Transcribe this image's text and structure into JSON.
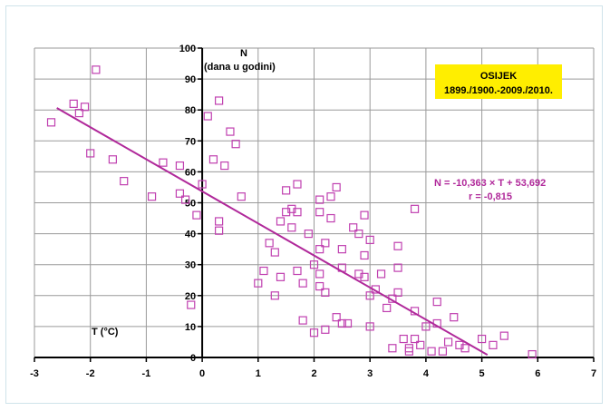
{
  "chart_data": {
    "type": "scatter",
    "title_box": {
      "line1": "OSIJEK",
      "line2": "1899./1900.-2009./2010.",
      "fill": "#ffee00"
    },
    "ylabel_line1": "N",
    "ylabel_line2": "(dana u godini)",
    "xlabel": "T (°C)",
    "xlim": [
      -3,
      7
    ],
    "ylim": [
      0,
      100
    ],
    "x_ticks": [
      -3,
      -2,
      -1,
      0,
      1,
      2,
      3,
      4,
      5,
      6,
      7
    ],
    "y_ticks": [
      0,
      10,
      20,
      30,
      40,
      50,
      60,
      70,
      80,
      90,
      100
    ],
    "grid": true,
    "marker_color": "#c040b0",
    "trend_color": "#b0289a",
    "regression": {
      "slope": -10.363,
      "intercept": 53.692,
      "x_range": [
        -2.6,
        5.1
      ],
      "equation": "N = -10,363 × T + 53,692",
      "r_text": "r = -0,815"
    },
    "points": [
      {
        "x": -2.7,
        "y": 76
      },
      {
        "x": -2.3,
        "y": 82
      },
      {
        "x": -2.1,
        "y": 81
      },
      {
        "x": -2.2,
        "y": 79
      },
      {
        "x": -1.9,
        "y": 93
      },
      {
        "x": -2.0,
        "y": 66
      },
      {
        "x": -1.6,
        "y": 64
      },
      {
        "x": -1.4,
        "y": 57
      },
      {
        "x": -0.9,
        "y": 52
      },
      {
        "x": -0.7,
        "y": 63
      },
      {
        "x": -0.4,
        "y": 62
      },
      {
        "x": -0.4,
        "y": 53
      },
      {
        "x": -0.3,
        "y": 51
      },
      {
        "x": -0.1,
        "y": 46
      },
      {
        "x": -0.2,
        "y": 17
      },
      {
        "x": 0.0,
        "y": 56
      },
      {
        "x": 0.1,
        "y": 78
      },
      {
        "x": 0.2,
        "y": 64
      },
      {
        "x": 0.3,
        "y": 83
      },
      {
        "x": 0.4,
        "y": 62
      },
      {
        "x": 0.5,
        "y": 73
      },
      {
        "x": 0.6,
        "y": 69
      },
      {
        "x": 0.7,
        "y": 52
      },
      {
        "x": 0.3,
        "y": 44
      },
      {
        "x": 0.3,
        "y": 41
      },
      {
        "x": 1.0,
        "y": 24
      },
      {
        "x": 1.1,
        "y": 28
      },
      {
        "x": 1.2,
        "y": 37
      },
      {
        "x": 1.3,
        "y": 34
      },
      {
        "x": 1.3,
        "y": 20
      },
      {
        "x": 1.4,
        "y": 26
      },
      {
        "x": 1.4,
        "y": 44
      },
      {
        "x": 1.5,
        "y": 47
      },
      {
        "x": 1.5,
        "y": 54
      },
      {
        "x": 1.6,
        "y": 48
      },
      {
        "x": 1.6,
        "y": 42
      },
      {
        "x": 1.7,
        "y": 47
      },
      {
        "x": 1.7,
        "y": 56
      },
      {
        "x": 1.7,
        "y": 28
      },
      {
        "x": 1.8,
        "y": 24
      },
      {
        "x": 1.8,
        "y": 12
      },
      {
        "x": 1.9,
        "y": 40
      },
      {
        "x": 2.0,
        "y": 30
      },
      {
        "x": 2.0,
        "y": 8
      },
      {
        "x": 2.1,
        "y": 51
      },
      {
        "x": 2.1,
        "y": 47
      },
      {
        "x": 2.1,
        "y": 35
      },
      {
        "x": 2.1,
        "y": 27
      },
      {
        "x": 2.1,
        "y": 23
      },
      {
        "x": 2.2,
        "y": 37
      },
      {
        "x": 2.2,
        "y": 21
      },
      {
        "x": 2.2,
        "y": 9
      },
      {
        "x": 2.3,
        "y": 52
      },
      {
        "x": 2.3,
        "y": 45
      },
      {
        "x": 2.4,
        "y": 55
      },
      {
        "x": 2.4,
        "y": 13
      },
      {
        "x": 2.5,
        "y": 35
      },
      {
        "x": 2.5,
        "y": 29
      },
      {
        "x": 2.5,
        "y": 11
      },
      {
        "x": 2.6,
        "y": 11
      },
      {
        "x": 2.7,
        "y": 42
      },
      {
        "x": 2.8,
        "y": 27
      },
      {
        "x": 2.8,
        "y": 40
      },
      {
        "x": 2.9,
        "y": 46
      },
      {
        "x": 2.9,
        "y": 26
      },
      {
        "x": 2.9,
        "y": 33
      },
      {
        "x": 3.0,
        "y": 38
      },
      {
        "x": 3.0,
        "y": 20
      },
      {
        "x": 3.0,
        "y": 10
      },
      {
        "x": 3.1,
        "y": 22
      },
      {
        "x": 3.2,
        "y": 27
      },
      {
        "x": 3.3,
        "y": 16
      },
      {
        "x": 3.4,
        "y": 19
      },
      {
        "x": 3.5,
        "y": 36
      },
      {
        "x": 3.5,
        "y": 29
      },
      {
        "x": 3.5,
        "y": 21
      },
      {
        "x": 3.6,
        "y": 6
      },
      {
        "x": 3.7,
        "y": 3
      },
      {
        "x": 3.7,
        "y": 2
      },
      {
        "x": 3.8,
        "y": 48
      },
      {
        "x": 3.8,
        "y": 15
      },
      {
        "x": 3.8,
        "y": 6
      },
      {
        "x": 3.9,
        "y": 4
      },
      {
        "x": 3.4,
        "y": 3
      },
      {
        "x": 4.0,
        "y": 10
      },
      {
        "x": 4.1,
        "y": 2
      },
      {
        "x": 4.2,
        "y": 18
      },
      {
        "x": 4.2,
        "y": 11
      },
      {
        "x": 4.3,
        "y": 2
      },
      {
        "x": 4.4,
        "y": 5
      },
      {
        "x": 4.5,
        "y": 13
      },
      {
        "x": 4.6,
        "y": 4
      },
      {
        "x": 4.7,
        "y": 3
      },
      {
        "x": 5.0,
        "y": 6
      },
      {
        "x": 5.2,
        "y": 4
      },
      {
        "x": 5.4,
        "y": 7
      },
      {
        "x": 5.9,
        "y": 1
      }
    ]
  }
}
